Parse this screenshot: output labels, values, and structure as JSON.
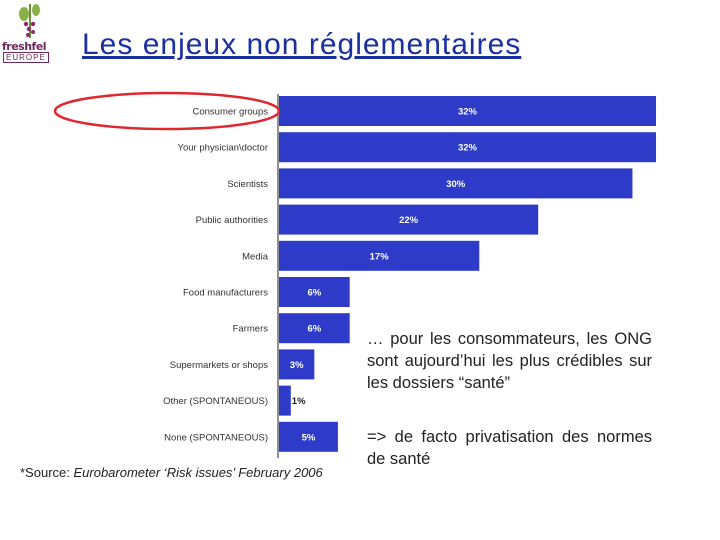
{
  "logo": {
    "name": "freshfel",
    "sub": "EUROPE"
  },
  "title": "Les enjeux non réglementaires",
  "chart_data": {
    "type": "bar",
    "orientation": "horizontal",
    "categories": [
      "Consumer groups",
      "Your physician\\doctor",
      "Scientists",
      "Public authorities",
      "Media",
      "Food manufacturers",
      "Farmers",
      "Supermarkets or shops",
      "Other (SPONTANEOUS)",
      "None (SPONTANEOUS)"
    ],
    "values": [
      32,
      32,
      30,
      22,
      17,
      6,
      6,
      3,
      1,
      5
    ],
    "value_labels": [
      "32%",
      "32%",
      "30%",
      "22%",
      "17%",
      "6%",
      "6%",
      "3%",
      "1%",
      "5%"
    ],
    "xlim": [
      0,
      32
    ],
    "bar_color": "#2d3bc8",
    "highlight": "Consumer groups",
    "highlight_color": "#e0262e"
  },
  "text": {
    "paragraph1": "… pour les consommateurs, les ONG sont aujourd’hui les plus crédibles sur les dossiers “santé”",
    "paragraph2": "=> de facto privatisation des normes de santé"
  },
  "source": {
    "prefix": "*Source: ",
    "italic": "Eurobarometer ‘Risk issues’ February 2006"
  }
}
